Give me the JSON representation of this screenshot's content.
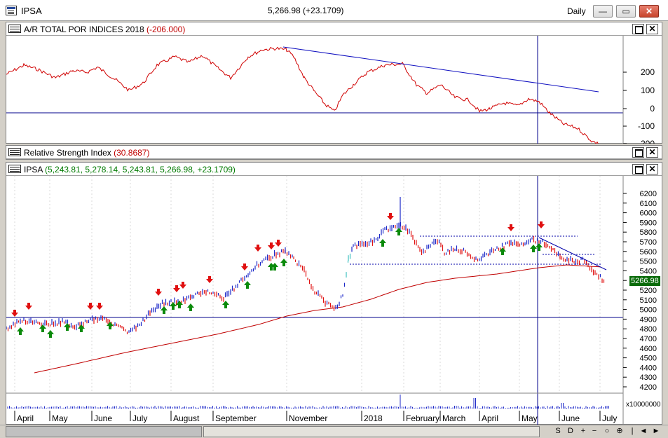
{
  "window": {
    "symbol": "IPSA",
    "quote": "5,266.98 (+23.1709)",
    "period": "Daily",
    "minimize_label": "—",
    "restore_label": "▭",
    "close_label": "✕"
  },
  "panels": {
    "ar": {
      "title": "A/R TOTAL POR INDICES 2018",
      "value": "(-206.000)",
      "axis": [
        "200",
        "100",
        "0",
        "-100",
        "-200"
      ]
    },
    "rsi": {
      "title": "Relative Strength Index",
      "value": "(30.8687)"
    },
    "price": {
      "title": "IPSA",
      "value": "(5,243.81, 5,278.14, 5,243.81, 5,266.98, +23.1709)",
      "axis": [
        "6200",
        "6100",
        "6000",
        "5900",
        "5800",
        "5700",
        "5600",
        "5500",
        "5400",
        "5300",
        "5200",
        "5100",
        "5000",
        "4900",
        "4800",
        "4700",
        "4600",
        "4500",
        "4400",
        "4300",
        "4200"
      ],
      "last_price": "5266.98"
    },
    "volume": {
      "axis_label": "x10000000"
    }
  },
  "x_axis": {
    "months": [
      "April",
      "May",
      "June",
      "July",
      "August",
      "September",
      "November",
      "2018",
      "February",
      "March",
      "April",
      "May",
      "June",
      "July"
    ]
  },
  "nav": {
    "buttons": [
      "S",
      "D",
      "+",
      "−",
      "○",
      "⊕",
      "|",
      "◄",
      "►"
    ]
  },
  "colors": {
    "up": "#1b27c8",
    "down": "#e01010",
    "ma": "#c00000",
    "trend": "#0000aa",
    "arrow_up": "#0a8a0a",
    "arrow_down": "#e01010"
  }
}
